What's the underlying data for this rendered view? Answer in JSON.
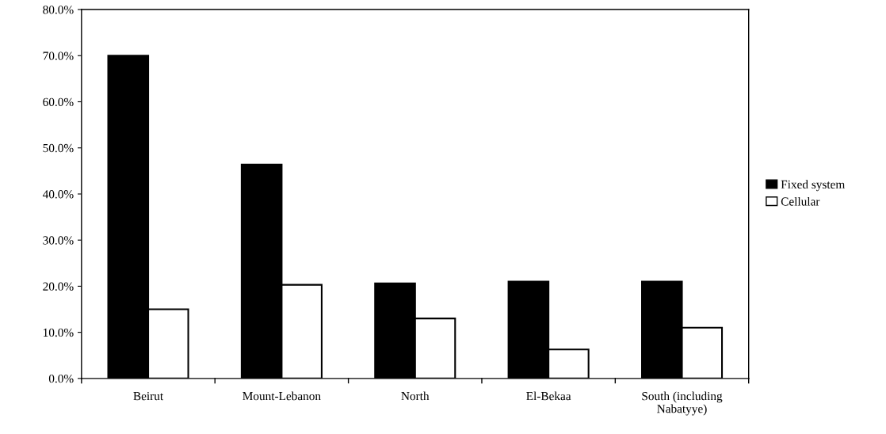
{
  "chart_data": {
    "type": "bar",
    "categories": [
      "Beirut",
      "Mount-Lebanon",
      "North",
      "El-Bekaa",
      "South (including\nNabatyye)"
    ],
    "series": [
      {
        "name": "Fixed system",
        "color": "#000000",
        "values": [
          70.0,
          46.4,
          20.6,
          21.0,
          21.0
        ]
      },
      {
        "name": "Cellular",
        "color": "#ffffff",
        "values": [
          15.0,
          20.3,
          13.0,
          6.3,
          11.0
        ]
      }
    ],
    "ylim": [
      0,
      80
    ],
    "yticks": [
      {
        "value": 0,
        "label": "0.0%"
      },
      {
        "value": 10,
        "label": "10.0%"
      },
      {
        "value": 20,
        "label": "20.0%"
      },
      {
        "value": 30,
        "label": "30.0%"
      },
      {
        "value": 40,
        "label": "40.0%"
      },
      {
        "value": 50,
        "label": "50.0%"
      },
      {
        "value": 60,
        "label": "60.0%"
      },
      {
        "value": 70,
        "label": "70.0%"
      },
      {
        "value": 80,
        "label": "80.0%"
      }
    ],
    "grid": false,
    "legend": "right"
  }
}
